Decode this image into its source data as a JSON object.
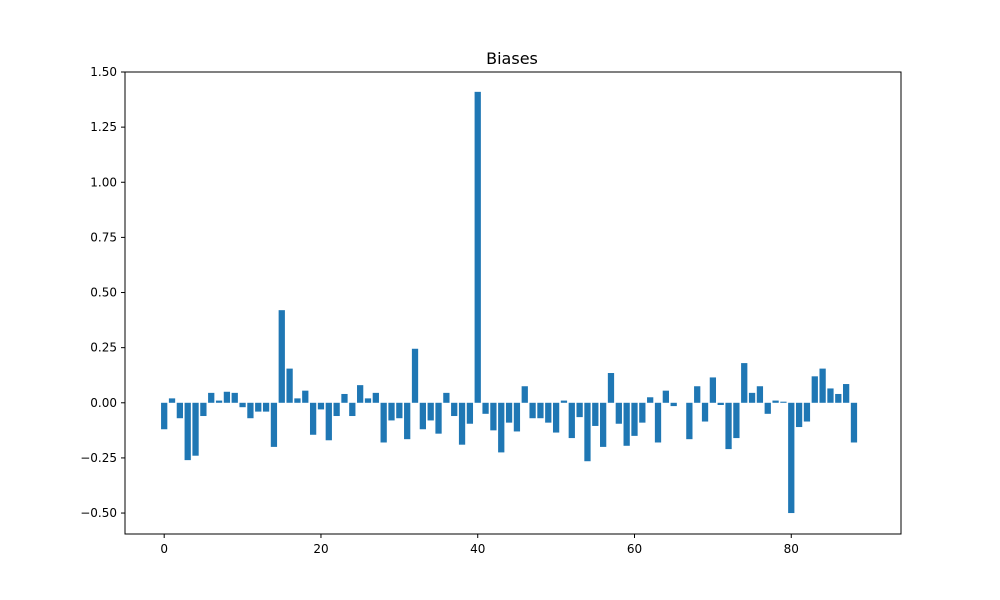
{
  "chart_data": {
    "type": "bar",
    "title": "Biases",
    "xlabel": "",
    "ylabel": "",
    "xlim": [
      -5,
      94
    ],
    "ylim": [
      -0.595,
      1.5
    ],
    "xticks": [
      0,
      20,
      40,
      60,
      80
    ],
    "yticks": [
      -0.5,
      -0.25,
      0.0,
      0.25,
      0.5,
      0.75,
      1.0,
      1.25,
      1.5
    ],
    "ytick_labels": [
      "−0.50",
      "−0.25",
      "0.00",
      "0.25",
      "0.50",
      "0.75",
      "1.00",
      "1.25",
      "1.50"
    ],
    "grid": false,
    "bar_color": "#1f77b4",
    "x": [
      0,
      1,
      2,
      3,
      4,
      5,
      6,
      7,
      8,
      9,
      10,
      11,
      12,
      13,
      14,
      15,
      16,
      17,
      18,
      19,
      20,
      21,
      22,
      23,
      24,
      25,
      26,
      27,
      28,
      29,
      30,
      31,
      32,
      33,
      34,
      35,
      36,
      37,
      38,
      39,
      40,
      41,
      42,
      43,
      44,
      45,
      46,
      47,
      48,
      49,
      50,
      51,
      52,
      53,
      54,
      55,
      56,
      57,
      58,
      59,
      60,
      61,
      62,
      63,
      64,
      65,
      66,
      67,
      68,
      69,
      70,
      71,
      72,
      73,
      74,
      75,
      76,
      77,
      78,
      79,
      80,
      81,
      82,
      83,
      84,
      85,
      86,
      87,
      88,
      89
    ],
    "values": [
      -0.12,
      0.02,
      -0.07,
      -0.26,
      -0.24,
      -0.06,
      0.045,
      0.01,
      0.05,
      0.045,
      -0.02,
      -0.07,
      -0.04,
      -0.04,
      -0.2,
      0.42,
      0.155,
      0.02,
      0.055,
      -0.145,
      -0.03,
      -0.17,
      -0.06,
      0.04,
      -0.06,
      0.08,
      0.02,
      0.045,
      -0.18,
      -0.08,
      -0.07,
      -0.165,
      0.245,
      -0.12,
      -0.08,
      -0.14,
      0.045,
      -0.06,
      -0.19,
      -0.095,
      1.41,
      -0.05,
      -0.125,
      -0.225,
      -0.09,
      -0.13,
      0.075,
      -0.07,
      -0.07,
      -0.09,
      -0.135,
      0.01,
      -0.16,
      -0.065,
      -0.265,
      -0.105,
      -0.2,
      0.135,
      -0.095,
      -0.195,
      -0.15,
      -0.09,
      0.025,
      -0.18,
      0.055,
      -0.015,
      0.0,
      -0.165,
      0.075,
      -0.085,
      0.115,
      -0.01,
      -0.21,
      -0.16,
      0.18,
      0.045,
      0.075,
      -0.05,
      0.01,
      0.005,
      -0.5,
      -0.11,
      -0.085,
      0.12,
      0.155,
      0.065,
      0.04,
      0.085,
      -0.18,
      0.0
    ]
  }
}
